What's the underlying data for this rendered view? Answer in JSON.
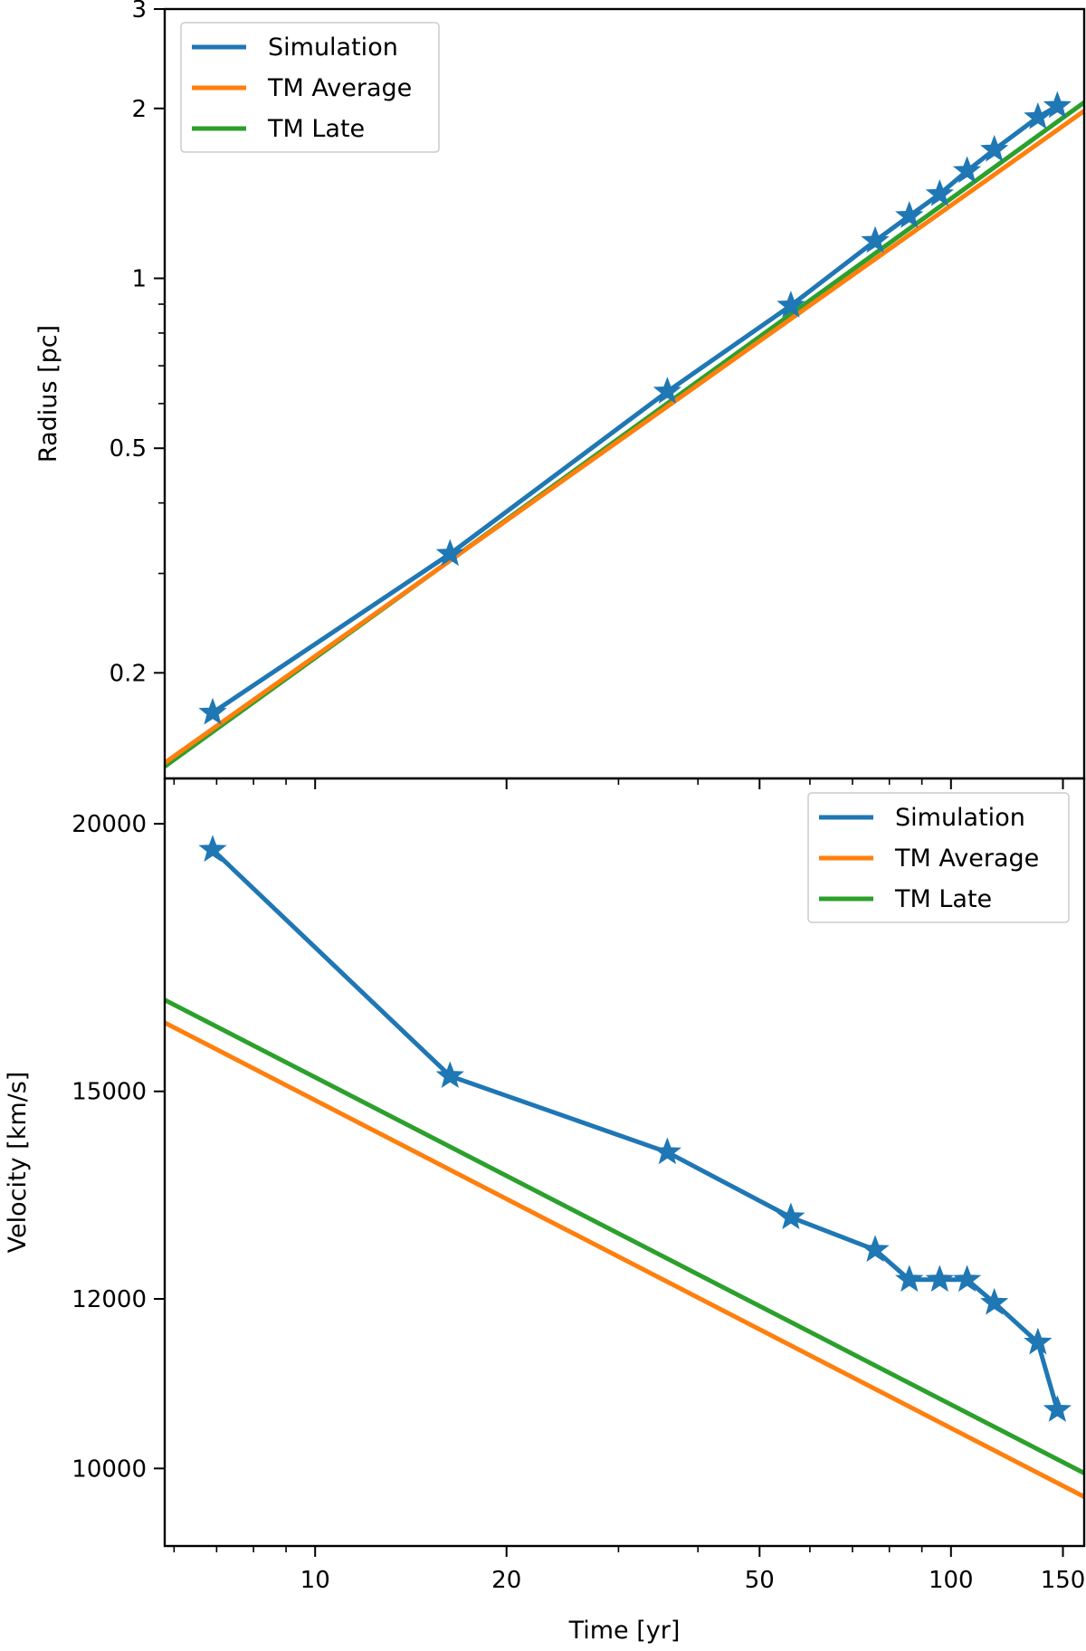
{
  "chart_data": [
    {
      "type": "line",
      "xlabel": "",
      "ylabel": "Radius [pc]",
      "xscale": "log",
      "yscale": "log",
      "xlim": [
        5.8,
        162
      ],
      "ylim": [
        0.13,
        3
      ],
      "xticks": [
        {
          "value": 10,
          "label": ""
        },
        {
          "value": 20,
          "label": ""
        },
        {
          "value": 50,
          "label": ""
        },
        {
          "value": 100,
          "label": ""
        },
        {
          "value": 150,
          "label": ""
        }
      ],
      "yticks": [
        {
          "value": 0.2,
          "label": "0.2"
        },
        {
          "value": 0.5,
          "label": "0.5"
        },
        {
          "value": 1,
          "label": "1"
        },
        {
          "value": 2,
          "label": "2"
        },
        {
          "value": 3,
          "label": "3"
        }
      ],
      "legend_position": "upper left",
      "series": [
        {
          "name": "Simulation",
          "color": "#1f77b4",
          "marker": "star",
          "x": [
            6.9,
            16.3,
            35.8,
            56,
            76,
            86,
            96,
            106,
            117,
            137,
            147
          ],
          "y": [
            0.17,
            0.325,
            0.63,
            0.895,
            1.165,
            1.29,
            1.41,
            1.55,
            1.69,
            1.93,
            2.02
          ]
        },
        {
          "name": "TM Average",
          "color": "#ff7f0e",
          "marker": "none",
          "x": [
            5.8,
            162
          ],
          "y": [
            0.1385,
            1.98
          ]
        },
        {
          "name": "TM Late",
          "color": "#2ca02c",
          "marker": "none",
          "x": [
            5.8,
            162
          ],
          "y": [
            0.1365,
            2.05
          ]
        }
      ]
    },
    {
      "type": "line",
      "xlabel": "Time [yr]",
      "ylabel": "Velocity [km/s]",
      "xscale": "log",
      "yscale": "log",
      "xlim": [
        5.8,
        162
      ],
      "ylim": [
        9200,
        21000
      ],
      "xticks": [
        {
          "value": 10,
          "label": "10"
        },
        {
          "value": 20,
          "label": "20"
        },
        {
          "value": 50,
          "label": "50"
        },
        {
          "value": 100,
          "label": "100"
        },
        {
          "value": 150,
          "label": "150"
        }
      ],
      "yticks": [
        {
          "value": 10000,
          "label": "10000"
        },
        {
          "value": 12000,
          "label": "12000"
        },
        {
          "value": 15000,
          "label": "15000"
        },
        {
          "value": 20000,
          "label": "20000"
        }
      ],
      "legend_position": "upper right",
      "series": [
        {
          "name": "Simulation",
          "color": "#1f77b4",
          "marker": "star",
          "x": [
            6.9,
            16.3,
            35.8,
            56,
            76,
            86,
            96,
            106,
            117,
            137,
            147
          ],
          "y": [
            19450,
            15250,
            14050,
            13100,
            12650,
            12250,
            12250,
            12250,
            11950,
            11450,
            10650
          ]
        },
        {
          "name": "TM Average",
          "color": "#ff7f0e",
          "marker": "none",
          "x": [
            5.8,
            162
          ],
          "y": [
            16150,
            9700
          ]
        },
        {
          "name": "TM Late",
          "color": "#2ca02c",
          "marker": "none",
          "x": [
            5.8,
            162
          ],
          "y": [
            16550,
            9950
          ]
        }
      ]
    }
  ]
}
